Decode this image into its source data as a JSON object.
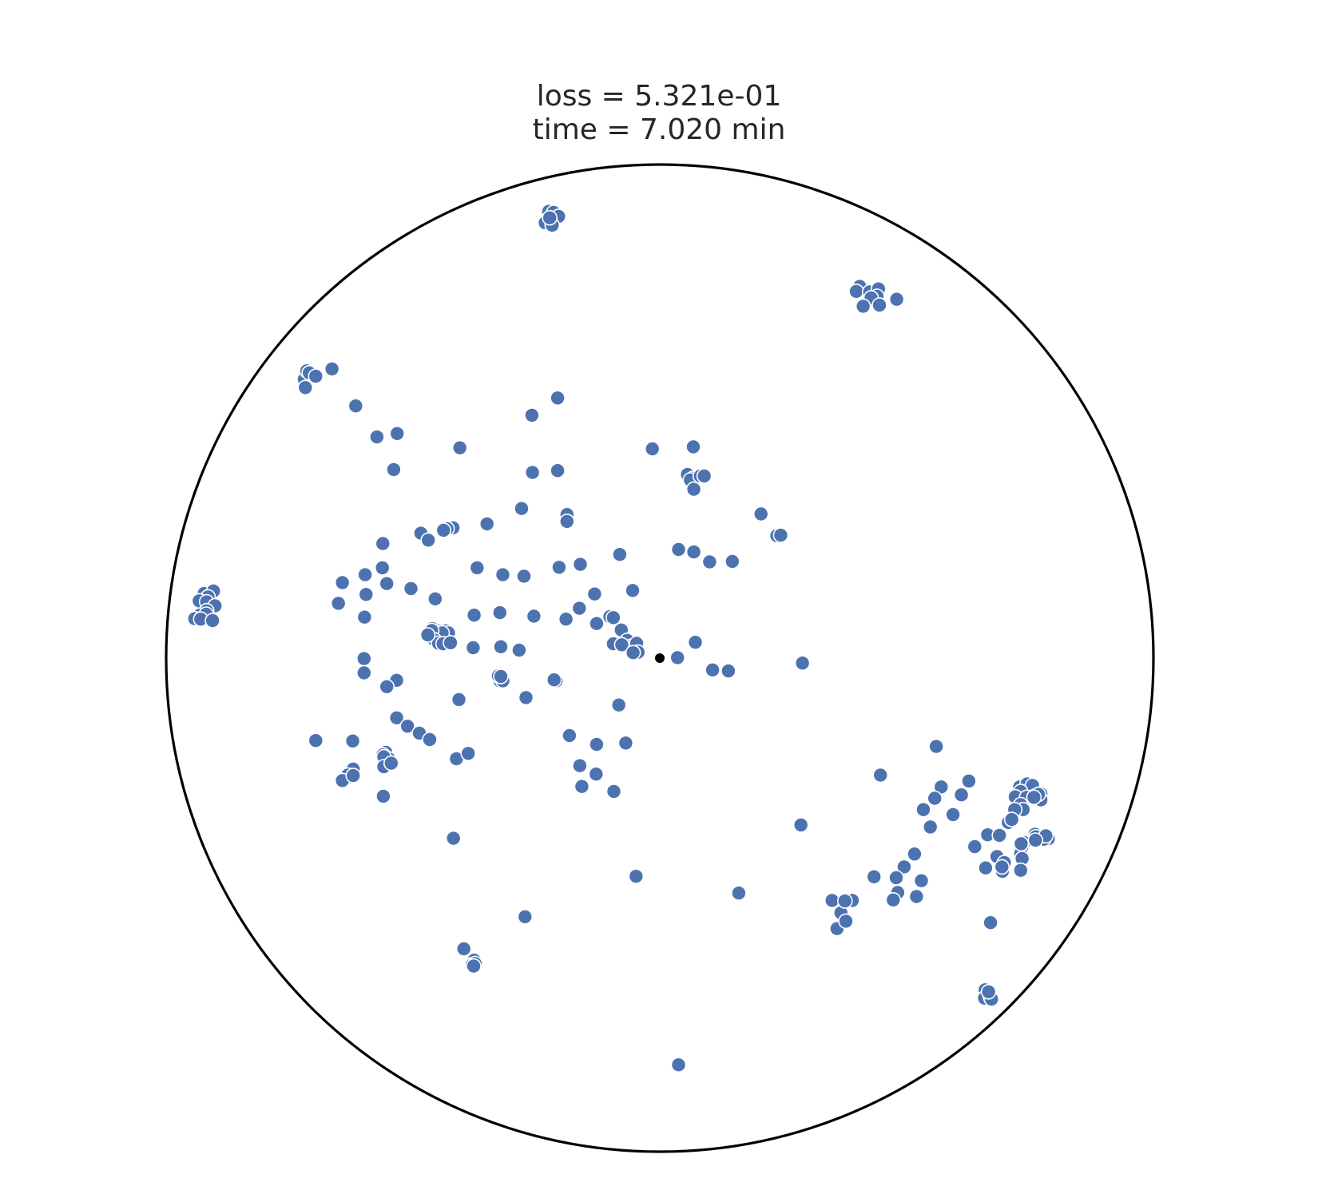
{
  "chart_data": {
    "type": "scatter",
    "title_lines": [
      "loss = 5.321e-01",
      "time = 7.020 min"
    ],
    "xlabel": "",
    "ylabel": "",
    "xlim": [
      -1,
      1
    ],
    "ylim": [
      -1,
      1
    ],
    "grid": false,
    "unit_circle_boundary": true,
    "colors": {
      "points": "#4c72b0",
      "point_edge": "#ffffff",
      "origin": "#000000",
      "boundary": "#000000",
      "title": "#262626"
    },
    "origin_marker": {
      "x": 0.0,
      "y": 0.0
    },
    "series": [
      {
        "points": [
          [
            -0.225,
            0.905
          ],
          [
            -0.215,
            0.903
          ],
          [
            -0.212,
            0.888
          ],
          [
            -0.232,
            0.882
          ],
          [
            -0.205,
            0.895
          ],
          [
            -0.218,
            0.877
          ],
          [
            -0.223,
            0.892
          ],
          [
            0.405,
            0.753
          ],
          [
            0.398,
            0.743
          ],
          [
            0.425,
            0.742
          ],
          [
            0.443,
            0.748
          ],
          [
            0.44,
            0.733
          ],
          [
            0.428,
            0.73
          ],
          [
            0.445,
            0.715
          ],
          [
            0.48,
            0.727
          ],
          [
            0.412,
            0.713
          ],
          [
            -0.72,
            0.565
          ],
          [
            -0.715,
            0.582
          ],
          [
            -0.7,
            0.573
          ],
          [
            -0.71,
            0.578
          ],
          [
            -0.718,
            0.548
          ],
          [
            -0.697,
            0.571
          ],
          [
            -0.664,
            0.586
          ],
          [
            -0.923,
            0.131
          ],
          [
            -0.904,
            0.136
          ],
          [
            -0.915,
            0.124
          ],
          [
            -0.933,
            0.116
          ],
          [
            -0.918,
            0.114
          ],
          [
            -0.901,
            0.106
          ],
          [
            -0.918,
            0.096
          ],
          [
            -0.932,
            0.087
          ],
          [
            -0.919,
            0.089
          ],
          [
            -0.942,
            0.08
          ],
          [
            -0.93,
            0.079
          ],
          [
            -0.906,
            0.076
          ],
          [
            -0.616,
            0.511
          ],
          [
            -0.573,
            0.448
          ],
          [
            -0.532,
            0.455
          ],
          [
            -0.539,
            0.382
          ],
          [
            -0.405,
            0.426
          ],
          [
            -0.259,
            0.492
          ],
          [
            -0.207,
            0.527
          ],
          [
            -0.258,
            0.376
          ],
          [
            -0.207,
            0.38
          ],
          [
            -0.015,
            0.424
          ],
          [
            0.068,
            0.428
          ],
          [
            0.056,
            0.372
          ],
          [
            0.067,
            0.364
          ],
          [
            0.062,
            0.361
          ],
          [
            0.082,
            0.369
          ],
          [
            0.09,
            0.369
          ],
          [
            0.069,
            0.342
          ],
          [
            0.205,
            0.292
          ],
          [
            0.237,
            0.248
          ],
          [
            0.245,
            0.249
          ],
          [
            -0.28,
            0.303
          ],
          [
            -0.188,
            0.291
          ],
          [
            -0.188,
            0.277
          ],
          [
            -0.35,
            0.272
          ],
          [
            -0.419,
            0.264
          ],
          [
            -0.431,
            0.262
          ],
          [
            -0.438,
            0.259
          ],
          [
            -0.484,
            0.253
          ],
          [
            -0.561,
            0.232
          ],
          [
            -0.469,
            0.239
          ],
          [
            0.038,
            0.22
          ],
          [
            0.069,
            0.215
          ],
          [
            0.101,
            0.195
          ],
          [
            0.147,
            0.196
          ],
          [
            -0.562,
            0.183
          ],
          [
            -0.597,
            0.169
          ],
          [
            -0.553,
            0.151
          ],
          [
            -0.643,
            0.153
          ],
          [
            -0.504,
            0.141
          ],
          [
            -0.318,
            0.169
          ],
          [
            -0.37,
            0.183
          ],
          [
            -0.275,
            0.166
          ],
          [
            -0.204,
            0.184
          ],
          [
            -0.161,
            0.19
          ],
          [
            -0.081,
            0.21
          ],
          [
            -0.132,
            0.13
          ],
          [
            -0.163,
            0.101
          ],
          [
            -0.055,
            0.137
          ],
          [
            -0.651,
            0.111
          ],
          [
            -0.595,
            0.129
          ],
          [
            -0.455,
            0.12
          ],
          [
            -0.598,
            0.083
          ],
          [
            -0.376,
            0.087
          ],
          [
            -0.324,
            0.092
          ],
          [
            -0.255,
            0.085
          ],
          [
            -0.19,
            0.079
          ],
          [
            -0.128,
            0.07
          ],
          [
            -0.101,
            0.084
          ],
          [
            -0.094,
            0.082
          ],
          [
            -0.078,
            0.057
          ],
          [
            -0.066,
            0.036
          ],
          [
            -0.058,
            0.024
          ],
          [
            -0.053,
            0.012
          ],
          [
            -0.461,
            0.06
          ],
          [
            -0.445,
            0.055
          ],
          [
            -0.442,
            0.052
          ],
          [
            -0.441,
            0.048
          ],
          [
            -0.433,
            0.055
          ],
          [
            -0.428,
            0.051
          ],
          [
            -0.441,
            0.051
          ],
          [
            -0.462,
            0.056
          ],
          [
            -0.457,
            0.037
          ],
          [
            -0.448,
            0.03
          ],
          [
            -0.439,
            0.029
          ],
          [
            -0.47,
            0.047
          ],
          [
            -0.424,
            0.031
          ],
          [
            -0.378,
            0.021
          ],
          [
            -0.322,
            0.023
          ],
          [
            -0.285,
            0.016
          ],
          [
            -0.094,
            0.029
          ],
          [
            -0.077,
            0.027
          ],
          [
            -0.047,
            0.03
          ],
          [
            -0.044,
            0.012
          ],
          [
            -0.054,
            0.011
          ],
          [
            0.072,
            0.032
          ],
          [
            0.036,
            0.001
          ],
          [
            -0.599,
            -0.001
          ],
          [
            -0.599,
            -0.03
          ],
          [
            -0.533,
            -0.045
          ],
          [
            -0.553,
            -0.058
          ],
          [
            -0.407,
            -0.084
          ],
          [
            -0.324,
            -0.046
          ],
          [
            -0.327,
            -0.036
          ],
          [
            -0.319,
            -0.043
          ],
          [
            -0.318,
            -0.046
          ],
          [
            -0.322,
            -0.037
          ],
          [
            -0.215,
            -0.045
          ],
          [
            -0.21,
            -0.046
          ],
          [
            -0.214,
            -0.044
          ],
          [
            -0.271,
            -0.08
          ],
          [
            -0.083,
            -0.095
          ],
          [
            0.107,
            -0.024
          ],
          [
            0.139,
            -0.026
          ],
          [
            0.289,
            -0.01
          ],
          [
            -0.533,
            -0.121
          ],
          [
            -0.511,
            -0.138
          ],
          [
            -0.487,
            -0.152
          ],
          [
            -0.622,
            -0.168
          ],
          [
            -0.697,
            -0.167
          ],
          [
            -0.466,
            -0.165
          ],
          [
            -0.412,
            -0.204
          ],
          [
            -0.388,
            -0.193
          ],
          [
            -0.555,
            -0.191
          ],
          [
            -0.561,
            -0.196
          ],
          [
            -0.549,
            -0.204
          ],
          [
            -0.559,
            -0.2
          ],
          [
            -0.621,
            -0.225
          ],
          [
            -0.559,
            -0.22
          ],
          [
            -0.544,
            -0.213
          ],
          [
            -0.633,
            -0.242
          ],
          [
            -0.632,
            -0.237
          ],
          [
            -0.643,
            -0.248
          ],
          [
            -0.621,
            -0.238
          ],
          [
            -0.56,
            -0.28
          ],
          [
            -0.183,
            -0.157
          ],
          [
            -0.128,
            -0.175
          ],
          [
            -0.069,
            -0.172
          ],
          [
            -0.162,
            -0.218
          ],
          [
            -0.129,
            -0.235
          ],
          [
            -0.158,
            -0.26
          ],
          [
            -0.093,
            -0.27
          ],
          [
            -0.418,
            -0.365
          ],
          [
            -0.397,
            -0.589
          ],
          [
            -0.376,
            -0.612
          ],
          [
            -0.375,
            -0.62
          ],
          [
            -0.38,
            -0.621
          ],
          [
            -0.374,
            -0.619
          ],
          [
            -0.377,
            -0.624
          ],
          [
            -0.273,
            -0.524
          ],
          [
            -0.048,
            -0.442
          ],
          [
            0.16,
            -0.476
          ],
          [
            0.286,
            -0.338
          ],
          [
            0.038,
            -0.824
          ],
          [
            0.56,
            -0.179
          ],
          [
            0.447,
            -0.237
          ],
          [
            0.57,
            -0.261
          ],
          [
            0.626,
            -0.249
          ],
          [
            0.557,
            -0.284
          ],
          [
            0.611,
            -0.277
          ],
          [
            0.548,
            -0.342
          ],
          [
            0.534,
            -0.307
          ],
          [
            0.594,
            -0.317
          ],
          [
            0.664,
            -0.358
          ],
          [
            0.638,
            -0.382
          ],
          [
            0.66,
            -0.425
          ],
          [
            0.683,
            -0.402
          ],
          [
            0.516,
            -0.397
          ],
          [
            0.495,
            -0.423
          ],
          [
            0.479,
            -0.445
          ],
          [
            0.53,
            -0.451
          ],
          [
            0.482,
            -0.475
          ],
          [
            0.473,
            -0.49
          ],
          [
            0.52,
            -0.483
          ],
          [
            0.434,
            -0.443
          ],
          [
            0.39,
            -0.491
          ],
          [
            0.349,
            -0.491
          ],
          [
            0.367,
            -0.516
          ],
          [
            0.375,
            -0.492
          ],
          [
            0.359,
            -0.548
          ],
          [
            0.377,
            -0.533
          ],
          [
            0.729,
            -0.261
          ],
          [
            0.744,
            -0.255
          ],
          [
            0.755,
            -0.258
          ],
          [
            0.731,
            -0.27
          ],
          [
            0.72,
            -0.281
          ],
          [
            0.743,
            -0.282
          ],
          [
            0.759,
            -0.28
          ],
          [
            0.731,
            -0.297
          ],
          [
            0.736,
            -0.307
          ],
          [
            0.772,
            -0.275
          ],
          [
            0.772,
            -0.287
          ],
          [
            0.719,
            -0.307
          ],
          [
            0.706,
            -0.333
          ],
          [
            0.713,
            -0.327
          ],
          [
            0.688,
            -0.359
          ],
          [
            0.76,
            -0.357
          ],
          [
            0.757,
            -0.367
          ],
          [
            0.765,
            -0.369
          ],
          [
            0.787,
            -0.366
          ],
          [
            0.762,
            -0.362
          ],
          [
            0.738,
            -0.374
          ],
          [
            0.733,
            -0.386
          ],
          [
            0.698,
            -0.414
          ],
          [
            0.731,
            -0.396
          ],
          [
            0.732,
            -0.376
          ],
          [
            0.778,
            -0.367
          ],
          [
            0.782,
            -0.36
          ],
          [
            0.761,
            -0.369
          ],
          [
            0.734,
            -0.406
          ],
          [
            0.694,
            -0.432
          ],
          [
            0.731,
            -0.43
          ],
          [
            0.693,
            -0.423
          ],
          [
            0.767,
            -0.276
          ],
          [
            0.758,
            -0.282
          ],
          [
            0.67,
            -0.536
          ],
          [
            0.659,
            -0.672
          ],
          [
            0.665,
            -0.68
          ],
          [
            0.667,
            -0.685
          ],
          [
            0.664,
            -0.69
          ],
          [
            0.658,
            -0.689
          ],
          [
            0.67,
            -0.687
          ],
          [
            0.672,
            -0.691
          ],
          [
            0.666,
            -0.676
          ]
        ]
      }
    ]
  }
}
